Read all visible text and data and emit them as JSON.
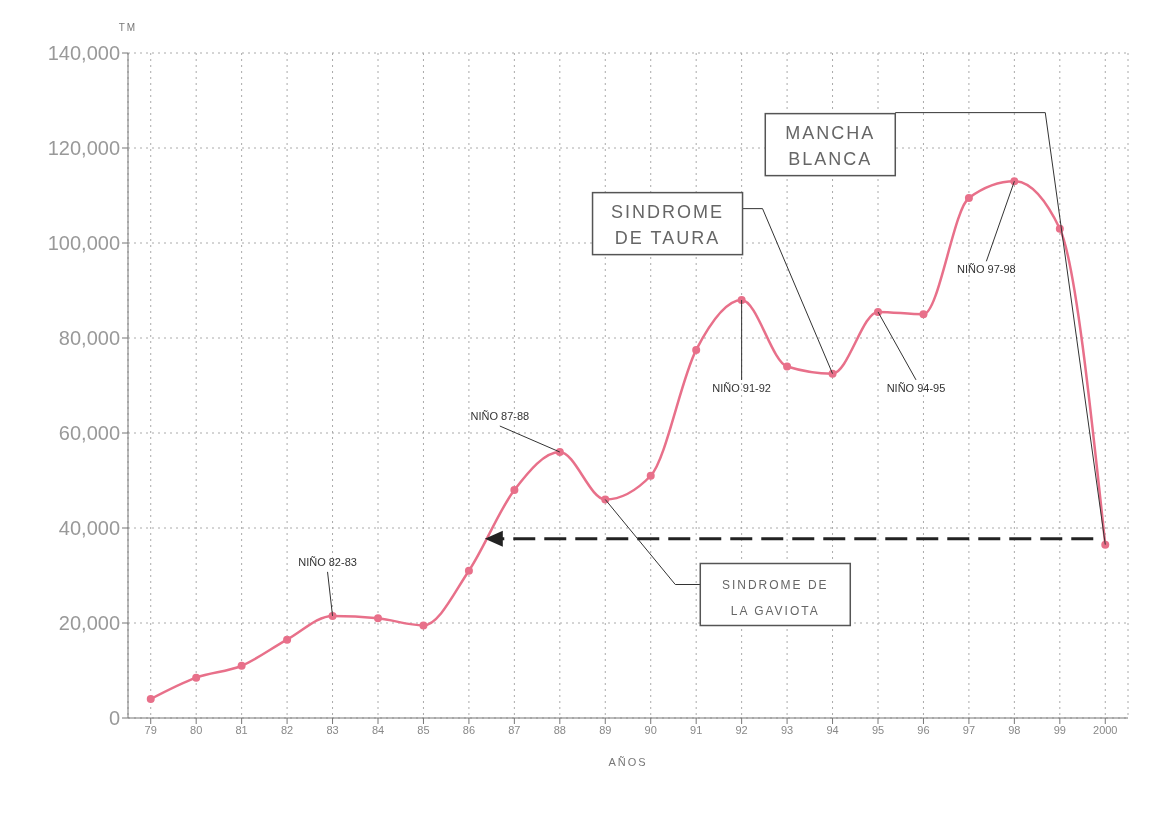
{
  "chart_data": {
    "type": "line",
    "xlabel": "AÑOS",
    "ylabel": "TM",
    "categories": [
      "79",
      "80",
      "81",
      "82",
      "83",
      "84",
      "85",
      "86",
      "87",
      "88",
      "89",
      "90",
      "91",
      "92",
      "93",
      "94",
      "95",
      "96",
      "97",
      "98",
      "99",
      "2000"
    ],
    "series": [
      {
        "color": "#e8708a",
        "values": [
          4000,
          8500,
          11000,
          16500,
          21500,
          21000,
          19500,
          31000,
          48000,
          56000,
          46000,
          51000,
          77500,
          88000,
          74000,
          72500,
          85500,
          85000,
          109500,
          113000,
          103000,
          36500
        ]
      }
    ],
    "ylim": [
      0,
      140000
    ],
    "yticks": [
      {
        "value": 0,
        "label": "0"
      },
      {
        "value": 20000,
        "label": "20,000"
      },
      {
        "value": 40000,
        "label": "40,000"
      },
      {
        "value": 60000,
        "label": "60,000"
      },
      {
        "value": 80000,
        "label": "80,000"
      },
      {
        "value": 100000,
        "label": "100,000"
      },
      {
        "value": 120000,
        "label": "120,000"
      },
      {
        "value": 140000,
        "label": "140,000"
      }
    ],
    "grid": true,
    "marker": "circle",
    "line_style": "solid",
    "annotations": [
      {
        "text": "NIÑO 82-83",
        "x": "83",
        "y": 21500
      },
      {
        "text": "NIÑO 87-88",
        "x": "88",
        "y": 56000
      },
      {
        "text": "NIÑO 91-92",
        "x": "92",
        "y": 88000
      },
      {
        "text": "NIÑO 94-95",
        "x": "95",
        "y": 85500
      },
      {
        "text": "NIÑO 97-98",
        "x": "98",
        "y": 113000
      },
      {
        "text": "SINDROME DE TAURA",
        "x": "94",
        "y": 72500
      },
      "SINDROME DE LA GAVIOTA",
      {
        "text": "MANCHA BLANCA",
        "x": "2000",
        "y": 36500
      }
    ]
  }
}
